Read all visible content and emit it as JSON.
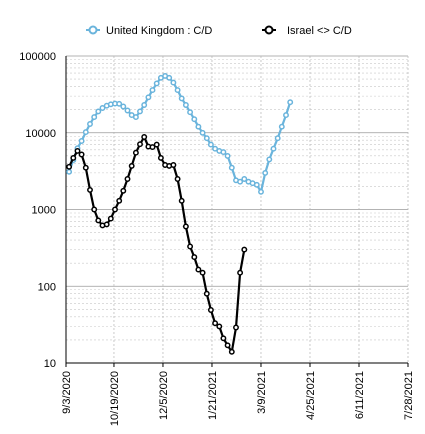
{
  "chart_data": {
    "type": "line",
    "yscale": "log",
    "ylim": [
      10,
      100000
    ],
    "xlim": [
      "9/3/2020",
      "7/28/2021"
    ],
    "y_ticks": [
      "10",
      "100",
      "1000",
      "10000",
      "100000"
    ],
    "x_ticks": [
      "9/3/2020",
      "10/19/2020",
      "12/5/2020",
      "1/21/2021",
      "3/9/2021",
      "4/25/2021",
      "6/11/2021",
      "7/28/2021"
    ],
    "grid": true,
    "legend_position": "top",
    "series": [
      {
        "name": "United Kingdom :  C/D",
        "color": "#6ab4dc",
        "marker": "circle",
        "points": [
          [
            "2020-09-06",
            3100
          ],
          [
            "2020-09-10",
            4400
          ],
          [
            "2020-09-14",
            6300
          ],
          [
            "2020-09-18",
            7800
          ],
          [
            "2020-09-22",
            10200
          ],
          [
            "2020-09-26",
            13000
          ],
          [
            "2020-09-30",
            16000
          ],
          [
            "2020-10-04",
            19000
          ],
          [
            "2020-10-08",
            21000
          ],
          [
            "2020-10-12",
            22500
          ],
          [
            "2020-10-16",
            23500
          ],
          [
            "2020-10-20",
            24000
          ],
          [
            "2020-10-24",
            23800
          ],
          [
            "2020-10-28",
            22000
          ],
          [
            "2020-11-01",
            19500
          ],
          [
            "2020-11-05",
            17000
          ],
          [
            "2020-11-09",
            16000
          ],
          [
            "2020-11-13",
            19000
          ],
          [
            "2020-11-17",
            23000
          ],
          [
            "2020-11-21",
            29000
          ],
          [
            "2020-11-25",
            36000
          ],
          [
            "2020-11-29",
            44000
          ],
          [
            "2020-12-03",
            52000
          ],
          [
            "2020-12-07",
            55000
          ],
          [
            "2020-12-11",
            52000
          ],
          [
            "2020-12-15",
            45000
          ],
          [
            "2020-12-19",
            36000
          ],
          [
            "2020-12-23",
            28000
          ],
          [
            "2020-12-27",
            23000
          ],
          [
            "2020-12-31",
            18500
          ],
          [
            "2021-01-04",
            15000
          ],
          [
            "2021-01-08",
            12000
          ],
          [
            "2021-01-12",
            10000
          ],
          [
            "2021-01-16",
            8500
          ],
          [
            "2021-01-20",
            7000
          ],
          [
            "2021-01-24",
            6200
          ],
          [
            "2021-01-28",
            5800
          ],
          [
            "2021-02-01",
            5600
          ],
          [
            "2021-02-05",
            5000
          ],
          [
            "2021-02-09",
            3500
          ],
          [
            "2021-02-13",
            2400
          ],
          [
            "2021-02-17",
            2300
          ],
          [
            "2021-02-21",
            2500
          ],
          [
            "2021-02-25",
            2300
          ],
          [
            "2021-03-01",
            2200
          ],
          [
            "2021-03-05",
            2100
          ],
          [
            "2021-03-09",
            1700
          ],
          [
            "2021-03-13",
            3000
          ],
          [
            "2021-03-17",
            4500
          ],
          [
            "2021-03-21",
            6200
          ],
          [
            "2021-03-25",
            8500
          ],
          [
            "2021-03-29",
            12000
          ],
          [
            "2021-04-02",
            17000
          ],
          [
            "2021-04-06",
            25000
          ]
        ]
      },
      {
        "name": "Israel <> C/D",
        "color": "#000000",
        "marker": "circle",
        "points": [
          [
            "2020-09-06",
            3600
          ],
          [
            "2020-09-10",
            4700
          ],
          [
            "2020-09-14",
            5800
          ],
          [
            "2020-09-18",
            5200
          ],
          [
            "2020-09-22",
            3500
          ],
          [
            "2020-09-26",
            1800
          ],
          [
            "2020-09-30",
            1000
          ],
          [
            "2020-10-04",
            720
          ],
          [
            "2020-10-08",
            620
          ],
          [
            "2020-10-12",
            640
          ],
          [
            "2020-10-16",
            760
          ],
          [
            "2020-10-20",
            1000
          ],
          [
            "2020-10-24",
            1300
          ],
          [
            "2020-10-28",
            1750
          ],
          [
            "2020-11-01",
            2500
          ],
          [
            "2020-11-05",
            3700
          ],
          [
            "2020-11-09",
            5500
          ],
          [
            "2020-11-13",
            7100
          ],
          [
            "2020-11-17",
            8800
          ],
          [
            "2020-11-21",
            6600
          ],
          [
            "2020-11-25",
            6500
          ],
          [
            "2020-11-29",
            7000
          ],
          [
            "2020-12-03",
            4700
          ],
          [
            "2020-12-07",
            3800
          ],
          [
            "2020-12-11",
            3700
          ],
          [
            "2020-12-15",
            3800
          ],
          [
            "2020-12-19",
            2500
          ],
          [
            "2020-12-23",
            1300
          ],
          [
            "2020-12-27",
            600
          ],
          [
            "2020-12-31",
            330
          ],
          [
            "2021-01-04",
            240
          ],
          [
            "2021-01-08",
            165
          ],
          [
            "2021-01-12",
            150
          ],
          [
            "2021-01-16",
            80
          ],
          [
            "2021-01-20",
            49
          ],
          [
            "2021-01-24",
            33
          ],
          [
            "2021-01-28",
            30
          ],
          [
            "2021-02-01",
            21
          ],
          [
            "2021-02-05",
            17
          ],
          [
            "2021-02-09",
            14
          ],
          [
            "2021-02-13",
            29
          ],
          [
            "2021-02-17",
            150
          ],
          [
            "2021-02-21",
            300
          ]
        ]
      }
    ]
  }
}
